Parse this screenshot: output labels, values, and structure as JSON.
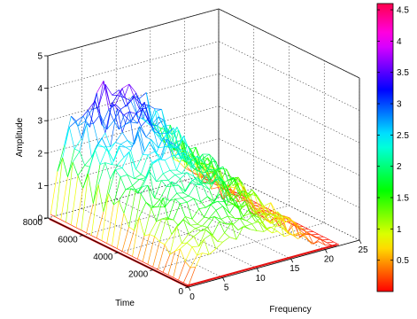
{
  "chart_data": {
    "type": "mesh3d",
    "title": "",
    "xlabel": "Frequency",
    "ylabel": "Time",
    "zlabel": "Amplitude",
    "xlim": [
      0,
      25
    ],
    "ylim": [
      0,
      8000
    ],
    "zlim": [
      0,
      5
    ],
    "clim": [
      0,
      4.6
    ],
    "colormap": "hsv (red at low values, through yellow, green, cyan, blue, magenta to red at high values)",
    "grid": true,
    "x_ticks": [
      "0",
      "5",
      "10",
      "15",
      "20",
      "25"
    ],
    "y_ticks": [
      "0",
      "2000",
      "4000",
      "6000",
      "8000"
    ],
    "z_ticks": [
      "0",
      "1",
      "2",
      "3",
      "4",
      "5"
    ],
    "colorbar_ticks": [
      "0.5",
      "1",
      "1.5",
      "2",
      "2.5",
      "3",
      "3.5",
      "4",
      "4.5"
    ],
    "colorbar_tick_values": [
      0.5,
      1,
      1.5,
      2,
      2.5,
      3,
      3.5,
      4,
      4.5
    ],
    "surface_profile": {
      "description": "approximate ridge amplitude vs frequency, taken at the back edge (late time)",
      "frequency": [
        0,
        1,
        2,
        3,
        4,
        5,
        6,
        7,
        8,
        9,
        10,
        11,
        12,
        13,
        14,
        15,
        16,
        17,
        18,
        19,
        20,
        21,
        22
      ],
      "amplitude": [
        0.2,
        1.6,
        2.6,
        2.8,
        3.0,
        3.2,
        3.4,
        3.5,
        3.6,
        3.5,
        3.4,
        3.3,
        3.0,
        2.6,
        2.6,
        2.2,
        1.9,
        1.6,
        1.2,
        0.8,
        0.4,
        0.2,
        0.1
      ]
    }
  }
}
